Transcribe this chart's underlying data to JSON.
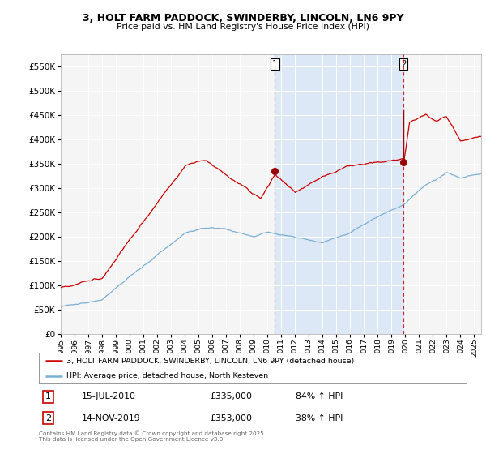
{
  "title": "3, HOLT FARM PADDOCK, SWINDERBY, LINCOLN, LN6 9PY",
  "subtitle": "Price paid vs. HM Land Registry's House Price Index (HPI)",
  "legend_line1": "3, HOLT FARM PADDOCK, SWINDERBY, LINCOLN, LN6 9PY (detached house)",
  "legend_line2": "HPI: Average price, detached house, North Kesteven",
  "sale1_date": "15-JUL-2010",
  "sale1_price": "£335,000",
  "sale1_hpi": "84% ↑ HPI",
  "sale2_date": "14-NOV-2019",
  "sale2_price": "£353,000",
  "sale2_hpi": "38% ↑ HPI",
  "footer": "Contains HM Land Registry data © Crown copyright and database right 2025.\nThis data is licensed under the Open Government Licence v3.0.",
  "red_color": "#cc0000",
  "blue_color": "#7bafd4",
  "sale_marker_color": "#990000",
  "dashed_line_color": "#cc0000",
  "bg_color": "#f5f5f5",
  "highlight_color": "#dce8f5",
  "ylim": [
    0,
    575000
  ],
  "yticks": [
    0,
    50000,
    100000,
    150000,
    200000,
    250000,
    300000,
    350000,
    400000,
    450000,
    500000,
    550000
  ],
  "sale1_x": 2010.54,
  "sale1_y": 335000,
  "sale2_x": 2019.87,
  "sale2_y": 353000,
  "xmin": 1995.0,
  "xmax": 2025.5
}
